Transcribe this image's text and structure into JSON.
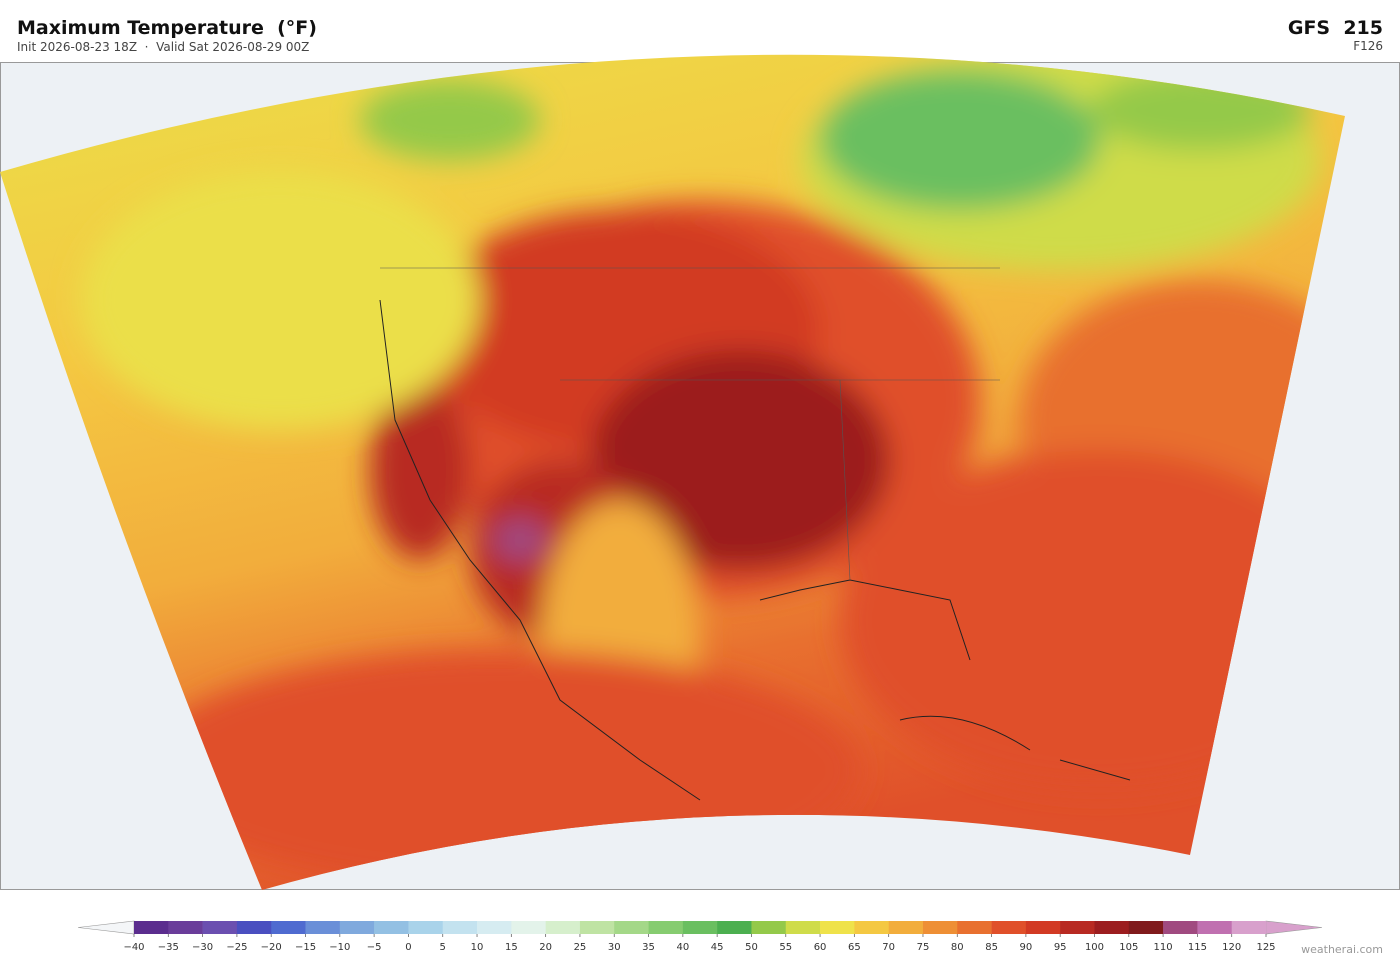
{
  "header": {
    "title": "Maximum Temperature  (°F)",
    "subtitle": "Init 2026-08-23 18Z  ·  Valid Sat 2026-08-29 00Z",
    "model": "GFS  215",
    "forecast_hour": "F126"
  },
  "colorbar": {
    "ticks": [
      {
        "value": -40,
        "label": "−40"
      },
      {
        "value": -35,
        "label": "−35"
      },
      {
        "value": -30,
        "label": "−30"
      },
      {
        "value": -25,
        "label": "−25"
      },
      {
        "value": -20,
        "label": "−20"
      },
      {
        "value": -15,
        "label": "−15"
      },
      {
        "value": -10,
        "label": "−10"
      },
      {
        "value": -5,
        "label": "−5"
      },
      0,
      5,
      10,
      15,
      20,
      25,
      30,
      35,
      40,
      45,
      50,
      55,
      60,
      65,
      70,
      75,
      80,
      85,
      90,
      95,
      100,
      105,
      110,
      115,
      120,
      125
    ],
    "colors": [
      "#5b2d8e",
      "#6a3d9a",
      "#6b4fb0",
      "#4a4fc0",
      "#4f6bd0",
      "#6a8fd8",
      "#7fa9dd",
      "#93c0e3",
      "#a9d3ea",
      "#c3e2ef",
      "#d6ecf1",
      "#e3f3ea",
      "#d6efcc",
      "#bfe3a3",
      "#a4d888",
      "#86cc70",
      "#6abf60",
      "#4caf50",
      "#94c94a",
      "#cfdc4a",
      "#efe24a",
      "#f4c842",
      "#f2ad3c",
      "#ee8f35",
      "#e8702f",
      "#e0502a",
      "#d23a24",
      "#b82a22",
      "#9c1d1f",
      "#801a1c",
      "#a04a80",
      "#c070b0",
      "#d8a0cc"
    ]
  },
  "footer": {
    "credit": "weatherai.com"
  }
}
